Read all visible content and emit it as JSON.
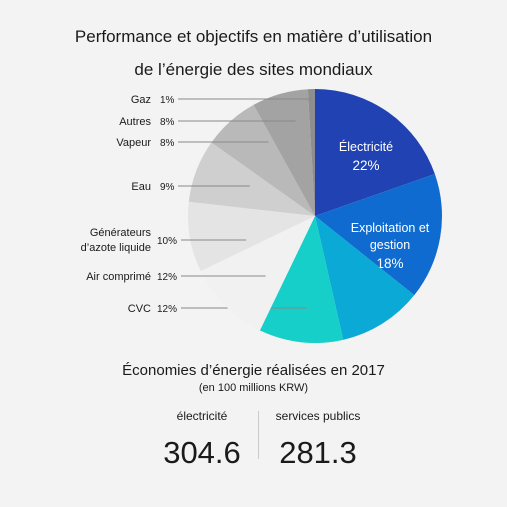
{
  "title_line1": "Performance et objectifs en matière d’utilisation",
  "title_line2": "de l’énergie des sites mondiaux",
  "chart_data": {
    "type": "pie",
    "slices": [
      {
        "name": "Électricité",
        "value": 22,
        "label": "22%",
        "color": "#2142b3"
      },
      {
        "name": "Exploitation et gestion",
        "value": 18,
        "label": "18%",
        "color": "#0f6bd0"
      },
      {
        "name": "",
        "value": 12,
        "label": "",
        "color": "#0aa9d6"
      },
      {
        "name": "CVC",
        "value": 12,
        "label": "12%",
        "color": "#15cfc8"
      },
      {
        "name": "Air comprimé",
        "value": 12,
        "label": "12%",
        "color": "#f1f1f1"
      },
      {
        "name": "Générateurs d’azote liquide",
        "value": 10,
        "label": "10%",
        "color": "#e4e4e4"
      },
      {
        "name": "Eau",
        "value": 9,
        "label": "9%",
        "color": "#cfcfcf"
      },
      {
        "name": "Vapeur",
        "value": 8,
        "label": "8%",
        "color": "#b9b9b9"
      },
      {
        "name": "Autres",
        "value": 8,
        "label": "8%",
        "color": "#a3a3a3"
      },
      {
        "name": "Gaz",
        "value": 1,
        "label": "1%",
        "color": "#8e8e8e"
      }
    ]
  },
  "savings": {
    "title": "Économies d’énergie réalisées en 2017",
    "unit": "(en 100 millions KRW)",
    "items": [
      {
        "label": "électricité",
        "value": "304.6"
      },
      {
        "label": "services publics",
        "value": "281.3"
      }
    ]
  }
}
